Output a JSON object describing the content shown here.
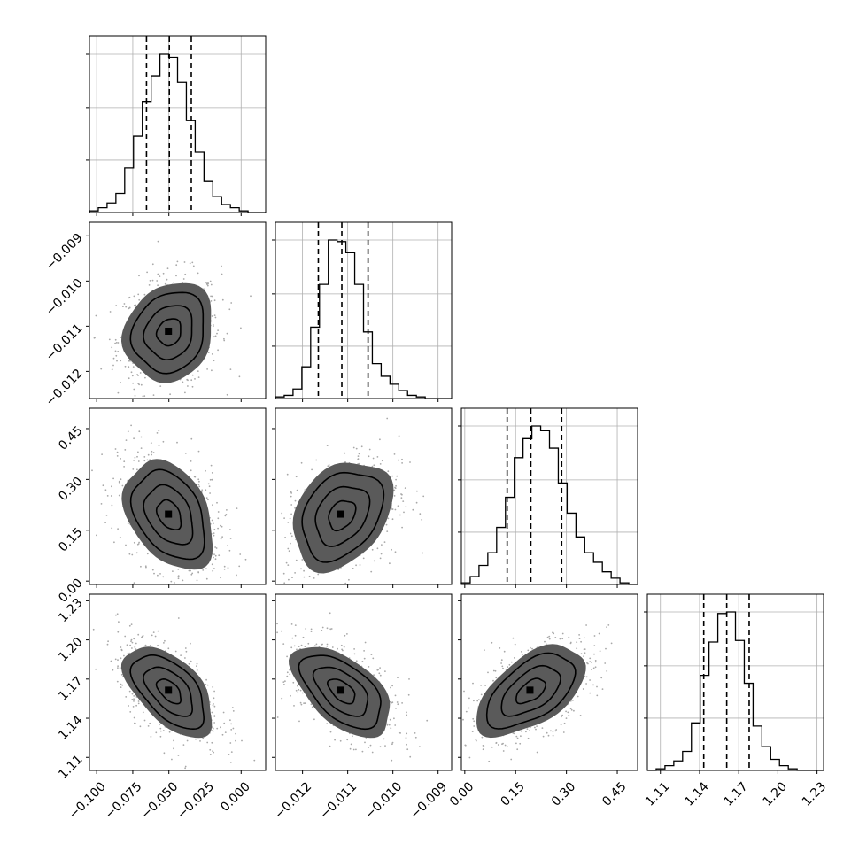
{
  "figure": {
    "variables": [
      "",
      "",
      "",
      ""
    ]
  },
  "chart_data": {
    "type": "corner",
    "variables": [
      {
        "range": [
          -0.105,
          0.017
        ],
        "ticks": [
          -0.1,
          -0.075,
          -0.05,
          -0.025,
          0.0
        ],
        "tick_labels": [
          "−0.100",
          "−0.075",
          "−0.050",
          "−0.025",
          "0.000"
        ],
        "quantiles": [
          -0.0655,
          -0.0497,
          -0.0345
        ],
        "hist_bin_counts": [
          1,
          3,
          6,
          12,
          28,
          48,
          70,
          86,
          100,
          98,
          82,
          58,
          38,
          20,
          10,
          5,
          3,
          1,
          0,
          0
        ]
      },
      {
        "range": [
          -0.0126,
          -0.0087
        ],
        "ticks": [
          -0.012,
          -0.011,
          -0.01,
          -0.009
        ],
        "tick_labels": [
          "−0.012",
          "−0.011",
          "−0.010",
          "−0.009"
        ],
        "quantiles": [
          -0.01165,
          -0.01113,
          -0.01055
        ],
        "hist_bin_counts": [
          1,
          2,
          6,
          20,
          45,
          72,
          100,
          99,
          92,
          72,
          42,
          22,
          14,
          9,
          5,
          2,
          1,
          0,
          0,
          0
        ]
      },
      {
        "range": [
          -0.01,
          0.51
        ],
        "ticks": [
          0.0,
          0.15,
          0.3,
          0.45
        ],
        "tick_labels": [
          "0.00",
          "0.15",
          "0.30",
          "0.45"
        ],
        "quantiles": [
          0.125,
          0.195,
          0.286
        ],
        "hist_bin_counts": [
          1,
          5,
          12,
          20,
          36,
          55,
          80,
          92,
          100,
          97,
          86,
          64,
          45,
          30,
          20,
          14,
          8,
          4,
          1,
          0
        ]
      },
      {
        "range": [
          1.1,
          1.235
        ],
        "ticks": [
          1.11,
          1.14,
          1.17,
          1.2,
          1.23
        ],
        "tick_labels": [
          "1.11",
          "1.14",
          "1.17",
          "1.20",
          "1.23"
        ],
        "quantiles": [
          1.1432,
          1.1608,
          1.178
        ],
        "hist_bin_counts": [
          0,
          1,
          3,
          6,
          12,
          30,
          60,
          81,
          99,
          100,
          82,
          55,
          28,
          15,
          7,
          3,
          1,
          0,
          0,
          0
        ]
      }
    ],
    "correlations": {
      "1-0": 0.15,
      "2-0": -0.35,
      "2-1": 0.3,
      "3-0": -0.55,
      "3-1": -0.55,
      "3-2": 0.55
    },
    "contour_levels": [
      0.5,
      1.0,
      1.5,
      2.0
    ],
    "grid": true,
    "line_color": "#000000",
    "grid_color": "#b0b0b0",
    "scatter_color": "#a8a8a8"
  }
}
